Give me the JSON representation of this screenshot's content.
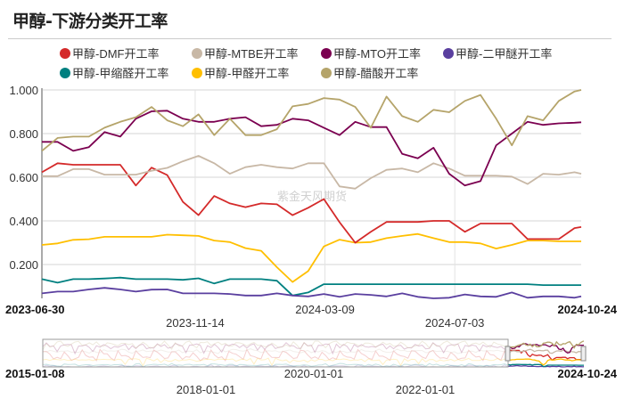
{
  "header": {
    "title": "甲醇-下游分类开工率"
  },
  "watermark": "紫金天风期货",
  "chart_data": {
    "type": "line",
    "title": "甲醇-下游分类开工率",
    "ylim": [
      0.045,
      1.0
    ],
    "y_ticks": [
      "0.200",
      "0.400",
      "0.600",
      "0.800",
      "1.000"
    ],
    "x_range": [
      "2023-06-30",
      "2024-10-24"
    ],
    "x_tick_labels": [
      "2023-06-30",
      "2023-11-14",
      "2024-03-09",
      "2024-07-03",
      "2024-10-24"
    ],
    "grid": true,
    "legend_position": "top",
    "dates": [
      "2023-06-30",
      "2023-07-14",
      "2023-07-28",
      "2023-08-11",
      "2023-08-25",
      "2023-09-08",
      "2023-09-22",
      "2023-10-06",
      "2023-10-20",
      "2023-11-03",
      "2023-11-17",
      "2023-12-01",
      "2023-12-15",
      "2023-12-29",
      "2024-01-12",
      "2024-01-26",
      "2024-02-09",
      "2024-02-23",
      "2024-03-08",
      "2024-03-22",
      "2024-04-05",
      "2024-04-19",
      "2024-05-03",
      "2024-05-17",
      "2024-05-31",
      "2024-06-14",
      "2024-06-28",
      "2024-07-12",
      "2024-07-26",
      "2024-08-09",
      "2024-08-23",
      "2024-09-06",
      "2024-09-20",
      "2024-10-04",
      "2024-10-18",
      "2024-10-24"
    ],
    "series": [
      {
        "name": "甲醇-DMF开工率",
        "color": "#d42a2a",
        "values": [
          0.623,
          0.664,
          0.657,
          0.657,
          0.657,
          0.657,
          0.562,
          0.644,
          0.61,
          0.487,
          0.426,
          0.514,
          0.48,
          0.463,
          0.48,
          0.476,
          0.426,
          0.46,
          0.5,
          0.394,
          0.3,
          0.35,
          0.395,
          0.395,
          0.395,
          0.4,
          0.4,
          0.35,
          0.388,
          0.388,
          0.388,
          0.317,
          0.317,
          0.317,
          0.367,
          0.372
        ]
      },
      {
        "name": "甲醇-MTBE开工率",
        "color": "#c8b8a6",
        "values": [
          0.605,
          0.605,
          0.637,
          0.637,
          0.612,
          0.612,
          0.612,
          0.63,
          0.643,
          0.673,
          0.698,
          0.664,
          0.616,
          0.646,
          0.657,
          0.646,
          0.64,
          0.664,
          0.664,
          0.558,
          0.548,
          0.596,
          0.634,
          0.64,
          0.623,
          0.664,
          0.64,
          0.607,
          0.607,
          0.607,
          0.603,
          0.569,
          0.616,
          0.612,
          0.623,
          0.616
        ]
      },
      {
        "name": "甲醇-MTO开工率",
        "color": "#7b0050",
        "values": [
          0.762,
          0.762,
          0.721,
          0.738,
          0.807,
          0.786,
          0.868,
          0.902,
          0.905,
          0.868,
          0.854,
          0.854,
          0.868,
          0.875,
          0.834,
          0.84,
          0.868,
          0.861,
          0.827,
          0.793,
          0.854,
          0.83,
          0.83,
          0.707,
          0.687,
          0.735,
          0.616,
          0.562,
          0.582,
          0.746,
          0.8,
          0.854,
          0.84,
          0.847,
          0.85,
          0.852
        ]
      },
      {
        "name": "甲醇-二甲醚开工率",
        "color": "#5a3f9f",
        "values": [
          0.068,
          0.076,
          0.076,
          0.086,
          0.093,
          0.086,
          0.076,
          0.085,
          0.086,
          0.068,
          0.068,
          0.068,
          0.065,
          0.058,
          0.058,
          0.068,
          0.058,
          0.054,
          0.065,
          0.052,
          0.065,
          0.061,
          0.054,
          0.068,
          0.052,
          0.045,
          0.048,
          0.063,
          0.054,
          0.052,
          0.072,
          0.048,
          0.054,
          0.054,
          0.048,
          0.054
        ]
      },
      {
        "name": "甲醇-甲缩醛开工率",
        "color": "#008080",
        "values": [
          0.133,
          0.117,
          0.133,
          0.133,
          0.136,
          0.14,
          0.133,
          0.133,
          0.133,
          0.13,
          0.137,
          0.113,
          0.133,
          0.133,
          0.133,
          0.126,
          0.058,
          0.072,
          0.11,
          0.11,
          0.11,
          0.11,
          0.11,
          0.11,
          0.11,
          0.11,
          0.11,
          0.11,
          0.11,
          0.11,
          0.11,
          0.11,
          0.106,
          0.106,
          0.106,
          0.106
        ]
      },
      {
        "name": "甲醇-甲醛开工率",
        "color": "#ffbf00",
        "values": [
          0.29,
          0.297,
          0.313,
          0.316,
          0.327,
          0.327,
          0.327,
          0.327,
          0.337,
          0.334,
          0.331,
          0.31,
          0.303,
          0.275,
          0.263,
          0.188,
          0.12,
          0.17,
          0.283,
          0.314,
          0.3,
          0.303,
          0.321,
          0.331,
          0.34,
          0.321,
          0.303,
          0.303,
          0.297,
          0.273,
          0.29,
          0.31,
          0.31,
          0.306,
          0.306,
          0.306
        ]
      },
      {
        "name": "甲醇-醋酸开工率",
        "color": "#b5a46a",
        "values": [
          0.721,
          0.78,
          0.786,
          0.786,
          0.827,
          0.854,
          0.875,
          0.922,
          0.861,
          0.834,
          0.888,
          0.793,
          0.868,
          0.793,
          0.793,
          0.82,
          0.925,
          0.936,
          0.963,
          0.956,
          0.922,
          0.827,
          0.97,
          0.88,
          0.854,
          0.909,
          0.898,
          0.95,
          0.977,
          0.868,
          0.746,
          0.88,
          0.861,
          0.95,
          0.993,
          1.0
        ]
      }
    ],
    "navigator": {
      "start_label": "2015-01-08",
      "end_label": "2024-10-24",
      "tick_labels": [
        "2018-01-01",
        "2020-01-01",
        "2022-01-01"
      ]
    }
  }
}
